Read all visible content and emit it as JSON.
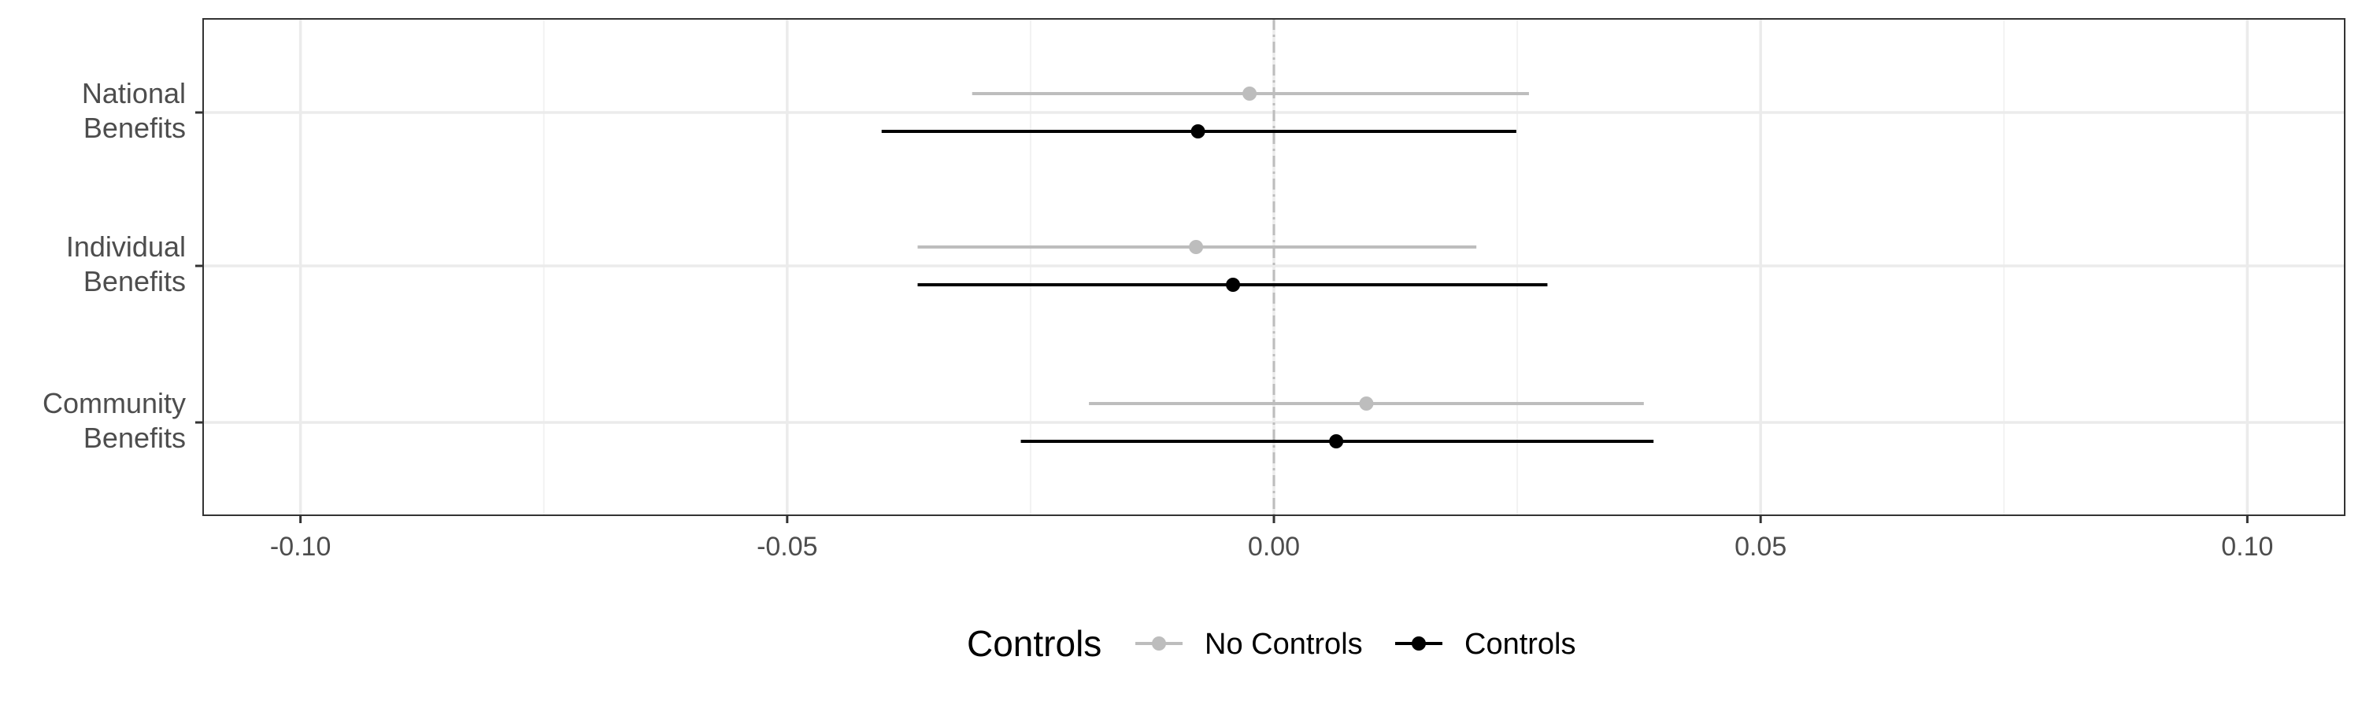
{
  "chart_data": {
    "type": "coefficient-plot",
    "orientation": "horizontal",
    "categories": [
      [
        "National",
        "Benefits"
      ],
      [
        "Individual",
        "Benefits"
      ],
      [
        "Community",
        "Benefits"
      ]
    ],
    "xlim": [
      -0.11,
      0.11
    ],
    "xticks": [
      -0.1,
      -0.05,
      0.0,
      0.05,
      0.1
    ],
    "xtick_labels": [
      "-0.10",
      "-0.05",
      "0.00",
      "0.05",
      "0.10"
    ],
    "xlabel": "",
    "ylabel": "",
    "grid": true,
    "reference_line": {
      "x": 0,
      "style": "dash-dot",
      "color": "#bdbdbd"
    },
    "series": [
      {
        "name": "No Controls",
        "color": "#bdbdbd",
        "points": [
          {
            "category": "National Benefits",
            "estimate": -0.0025,
            "low": -0.031,
            "high": 0.0262
          },
          {
            "category": "Individual Benefits",
            "estimate": -0.008,
            "low": -0.0366,
            "high": 0.0208
          },
          {
            "category": "Community Benefits",
            "estimate": 0.0095,
            "low": -0.019,
            "high": 0.038
          }
        ]
      },
      {
        "name": "Controls",
        "color": "#000000",
        "points": [
          {
            "category": "National Benefits",
            "estimate": -0.0078,
            "low": -0.0403,
            "high": 0.0249
          },
          {
            "category": "Individual Benefits",
            "estimate": -0.0042,
            "low": -0.0366,
            "high": 0.0281
          },
          {
            "category": "Community Benefits",
            "estimate": 0.0064,
            "low": -0.026,
            "high": 0.039
          }
        ]
      }
    ],
    "legend": {
      "title": "Controls",
      "position": "bottom",
      "entries": [
        "No Controls",
        "Controls"
      ]
    }
  }
}
